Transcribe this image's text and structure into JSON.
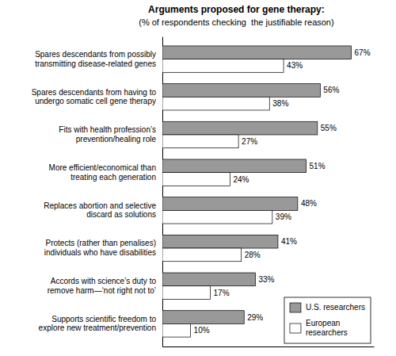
{
  "chart_data": {
    "type": "bar",
    "orientation": "horizontal",
    "title": "Arguments proposed for gene therapy:",
    "subtitle": "(% of respondents checking  the justifiable reason)",
    "categories": [
      "Spares descendants from possibly\ntransmitting disease-related genes",
      "Spares descendants from having to\nundergo somatic cell gene therapy",
      "Fits with health profession’s\nprevention/healing role",
      "More efficient/economical than\ntreating each generation",
      "Replaces abortion and selective\ndiscard as solutions",
      "Protects (rather than penalises)\nindividuals who have disabilities",
      "Accords with science’s duty to\nremove harm—‘not right not to’",
      "Supports scientific freedom to\nexplore new treatment/prevention"
    ],
    "series": [
      {
        "name": "U.S. researchers",
        "color": "#999999",
        "values": [
          67,
          56,
          55,
          51,
          48,
          41,
          33,
          29
        ],
        "value_labels": [
          "67%",
          "56%",
          "55%",
          "51%",
          "48%",
          "41%",
          "33%",
          "29%"
        ]
      },
      {
        "name": "European\nresearchers",
        "color": "#ffffff",
        "values": [
          43,
          38,
          27,
          24,
          39,
          28,
          17,
          10
        ],
        "value_labels": [
          "43%",
          "38%",
          "27%",
          "24%",
          "39%",
          "28%",
          "17%",
          "10%"
        ]
      }
    ],
    "xlim": [
      0,
      75
    ],
    "tick_labels": "y",
    "data_labels": true,
    "legend": "lower right",
    "grid": false
  }
}
